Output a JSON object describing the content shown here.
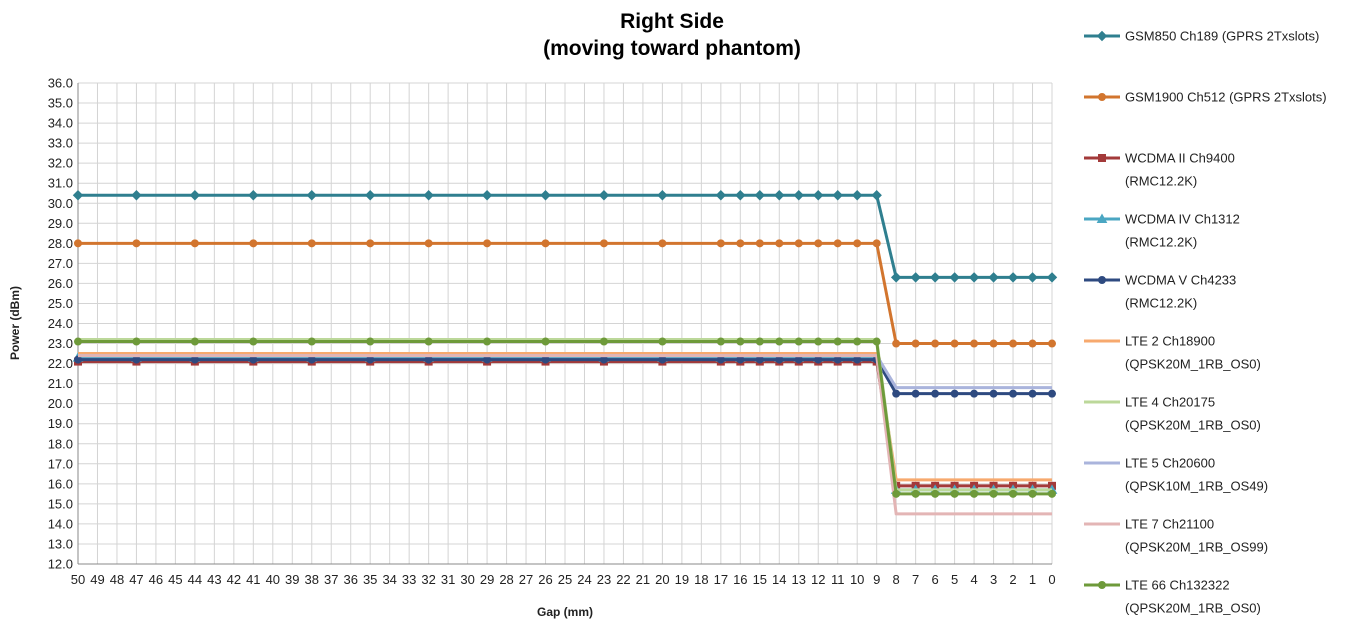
{
  "chart_data": {
    "type": "line",
    "title": "Right Side",
    "subtitle": "(moving toward phantom)",
    "xlabel": "Gap (mm)",
    "ylabel": "Power (dBm)",
    "x": [
      50,
      49,
      48,
      47,
      46,
      45,
      44,
      43,
      42,
      41,
      40,
      39,
      38,
      37,
      36,
      35,
      34,
      33,
      32,
      31,
      30,
      29,
      28,
      27,
      26,
      25,
      24,
      23,
      22,
      21,
      20,
      19,
      18,
      17,
      16,
      15,
      14,
      13,
      12,
      11,
      10,
      9,
      8,
      7,
      6,
      5,
      4,
      3,
      2,
      1,
      0
    ],
    "x_tick_labels": [
      "50",
      "49",
      "48",
      "47",
      "46",
      "45",
      "44",
      "43",
      "42",
      "41",
      "40",
      "39",
      "38",
      "37",
      "36",
      "35",
      "34",
      "33",
      "32",
      "31",
      "30",
      "29",
      "28",
      "27",
      "26",
      "25",
      "24",
      "23",
      "22",
      "21",
      "20",
      "19",
      "18",
      "17",
      "16",
      "15",
      "14",
      "13",
      "12",
      "11",
      "10",
      "9",
      "8",
      "7",
      "6",
      "5",
      "4",
      "3",
      "2",
      "1",
      "0"
    ],
    "ylim": [
      12.0,
      36.0
    ],
    "y_tick_labels": [
      "12.0",
      "13.0",
      "14.0",
      "15.0",
      "16.0",
      "17.0",
      "18.0",
      "19.0",
      "20.0",
      "21.0",
      "22.0",
      "23.0",
      "24.0",
      "25.0",
      "26.0",
      "27.0",
      "28.0",
      "29.0",
      "30.0",
      "31.0",
      "32.0",
      "33.0",
      "34.0",
      "35.0",
      "36.0"
    ],
    "grid": true,
    "legend_position": "right",
    "marker_gaps": [
      50,
      47,
      44,
      41,
      38,
      35,
      32,
      29,
      26,
      23,
      20,
      17,
      16,
      15,
      14,
      13,
      12,
      11,
      10,
      9,
      8,
      7,
      6,
      5,
      4,
      3,
      2,
      1,
      0
    ],
    "series": [
      {
        "name": "GSM850 Ch189 (GPRS 2Txslots)",
        "legend_lines": [
          "GSM850 Ch189 (GPRS 2Txslots)"
        ],
        "color": "#2f7f8f",
        "marker": "diamond",
        "before": 30.4,
        "after": 26.3
      },
      {
        "name": "GSM1900 Ch512 (GPRS 2Txslots)",
        "legend_lines": [
          "GSM1900 Ch512 (GPRS 2Txslots)"
        ],
        "color": "#d2752e",
        "marker": "circle",
        "before": 28.0,
        "after": 23.0
      },
      {
        "name": "WCDMA II Ch9400 (RMC12.2K)",
        "legend_lines": [
          "WCDMA II Ch9400",
          "(RMC12.2K)"
        ],
        "color": "#a33a3a",
        "marker": "square",
        "before": 22.1,
        "after": 15.9
      },
      {
        "name": "WCDMA IV Ch1312 (RMC12.2K)",
        "legend_lines": [
          "WCDMA IV Ch1312",
          "(RMC12.2K)"
        ],
        "color": "#4aa6c2",
        "marker": "triangle",
        "before": 22.3,
        "after": 15.7
      },
      {
        "name": "WCDMA V Ch4233 (RMC12.2K)",
        "legend_lines": [
          "WCDMA V Ch4233",
          "(RMC12.2K)"
        ],
        "color": "#2e4a80",
        "marker": "circle",
        "before": 22.2,
        "after": 20.5
      },
      {
        "name": "LTE 2 Ch18900 (QPSK20M_1RB_OS0)",
        "legend_lines": [
          "LTE 2 Ch18900",
          "(QPSK20M_1RB_OS0)"
        ],
        "color": "#f7a96e",
        "marker": "none",
        "before": 22.5,
        "after": 16.2
      },
      {
        "name": "LTE 4 Ch20175 (QPSK20M_1RB_OS0)",
        "legend_lines": [
          "LTE 4 Ch20175",
          "(QPSK20M_1RB_OS0)"
        ],
        "color": "#bcd89a",
        "marker": "none",
        "before": 23.2,
        "after": 15.7
      },
      {
        "name": "LTE 5 Ch20600 (QPSK10M_1RB_OS49)",
        "legend_lines": [
          "LTE 5 Ch20600",
          "(QPSK10M_1RB_OS49)"
        ],
        "color": "#aab4dc",
        "marker": "none",
        "before": 22.4,
        "after": 20.8
      },
      {
        "name": "LTE 7 Ch21100 (QPSK20M_1RB_OS99)",
        "legend_lines": [
          "LTE 7 Ch21100",
          "(QPSK20M_1RB_OS99)"
        ],
        "color": "#e3b5b5",
        "marker": "none",
        "before": 22.4,
        "after": 14.5
      },
      {
        "name": "LTE 66 Ch132322 (QPSK20M_1RB_OS0)",
        "legend_lines": [
          "LTE 66 Ch132322",
          "(QPSK20M_1RB_OS0)"
        ],
        "color": "#6e9a3a",
        "marker": "circle",
        "before": 23.1,
        "after": 15.5
      }
    ]
  }
}
